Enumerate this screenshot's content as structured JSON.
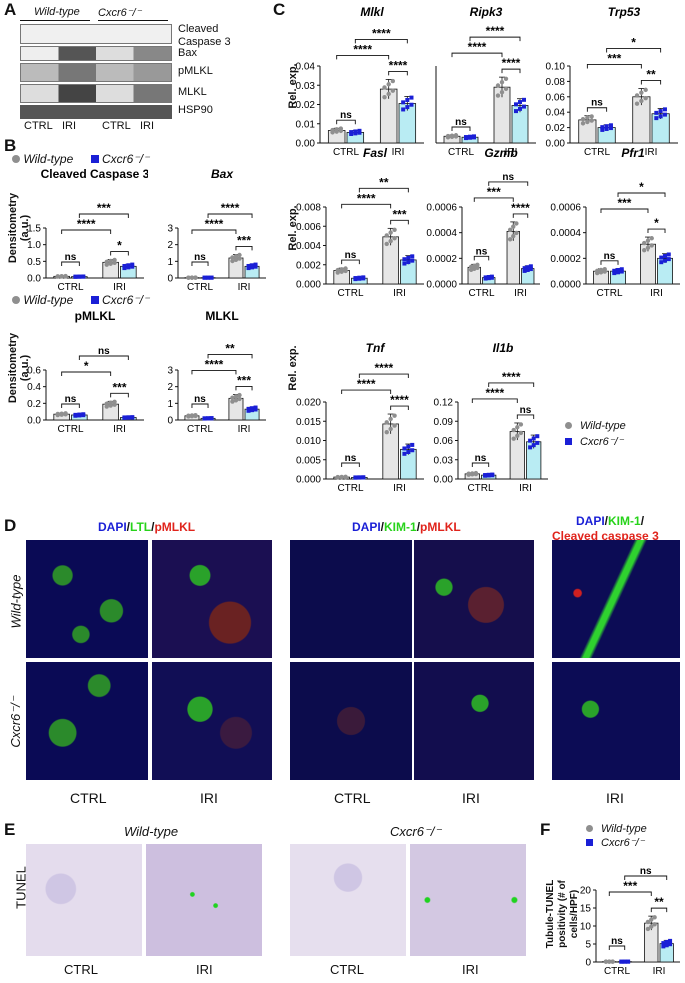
{
  "panel_labels": {
    "A": "A",
    "B": "B",
    "C": "C",
    "D": "D",
    "E": "E",
    "F": "F"
  },
  "colors": {
    "wildtype_bar": "#e6e6e6",
    "cxcr6_bar": "#b9ecf3",
    "wt_dot": "#8f8f8f",
    "cx_dot": "#1a1fd6",
    "blue": "#1a1fd6",
    "green": "#27d31a",
    "red": "#e0241c"
  },
  "western": {
    "groups": [
      "Wild-type",
      "Cxcr6⁻/⁻"
    ],
    "bands": [
      "Cleaved Caspase 3",
      "Bax",
      "pMLKL",
      "MLKL",
      "HSP90"
    ],
    "conditions": [
      "CTRL",
      "IRI",
      "CTRL",
      "IRI"
    ]
  },
  "legend": {
    "wt": "Wild-type",
    "cx": "Cxcr6⁻/⁻"
  },
  "densitometry_ylabel": "Densitometry (a.u.)",
  "rel_exp_ylabel": "Rel. exp.",
  "tunel_ylabel": "Tubule-TUNEL positivity (# of cells/HPF)",
  "x_categories": [
    "CTRL",
    "IRI"
  ],
  "chart_data": [
    {
      "type": "bar",
      "id": "cleaved_caspase3",
      "title": "Cleaved Caspase 3",
      "categories": [
        "CTRL",
        "IRI"
      ],
      "yticks": [
        "0.0",
        "0.5",
        "1.0",
        "1.5"
      ],
      "ylim": [
        0,
        1.5
      ],
      "series": [
        {
          "name": "Wild-type",
          "values": [
            0.05,
            0.47
          ]
        },
        {
          "name": "Cxcr6-/-",
          "values": [
            0.04,
            0.35
          ]
        }
      ],
      "sig": {
        "within_ctrl": "ns",
        "within_iri": "*",
        "ctrl_iri_wt": "****",
        "ctrl_iri_cx": "***"
      }
    },
    {
      "type": "bar",
      "id": "bax",
      "title": "Bax",
      "categories": [
        "CTRL",
        "IRI"
      ],
      "yticks": [
        "0",
        "1",
        "2",
        "3"
      ],
      "ylim": [
        0,
        3
      ],
      "series": [
        {
          "name": "Wild-type",
          "values": [
            0.02,
            1.2
          ]
        },
        {
          "name": "Cxcr6-/-",
          "values": [
            0.02,
            0.7
          ]
        }
      ],
      "sig": {
        "within_ctrl": "ns",
        "within_iri": "***",
        "ctrl_iri_wt": "****",
        "ctrl_iri_cx": "****"
      }
    },
    {
      "type": "bar",
      "id": "pmlkl",
      "title": "pMLKL",
      "categories": [
        "CTRL",
        "IRI"
      ],
      "yticks": [
        "0.0",
        "0.2",
        "0.4",
        "0.6"
      ],
      "ylim": [
        0,
        0.6
      ],
      "series": [
        {
          "name": "Wild-type",
          "values": [
            0.07,
            0.19
          ]
        },
        {
          "name": "Cxcr6-/-",
          "values": [
            0.06,
            0.03
          ]
        }
      ],
      "sig": {
        "within_ctrl": "ns",
        "within_iri": "***",
        "ctrl_iri_wt": "*",
        "ctrl_iri_cx": "ns"
      }
    },
    {
      "type": "bar",
      "id": "mlkl",
      "title": "MLKL",
      "categories": [
        "CTRL",
        "IRI"
      ],
      "yticks": [
        "0",
        "1",
        "2",
        "3"
      ],
      "ylim": [
        0,
        3
      ],
      "series": [
        {
          "name": "Wild-type",
          "values": [
            0.25,
            1.3
          ]
        },
        {
          "name": "Cxcr6-/-",
          "values": [
            0.1,
            0.65
          ]
        }
      ],
      "sig": {
        "within_ctrl": "ns",
        "within_iri": "***",
        "ctrl_iri_wt": "****",
        "ctrl_iri_cx": "**"
      }
    },
    {
      "type": "bar",
      "id": "mlkl_gene",
      "title": "Mlkl",
      "categories": [
        "CTRL",
        "IRI"
      ],
      "yticks": [
        "0.00",
        "0.01",
        "0.02",
        "0.03",
        "0.04"
      ],
      "ylim": [
        0,
        0.04
      ],
      "series": [
        {
          "name": "Wild-type",
          "values": [
            0.0065,
            0.028
          ]
        },
        {
          "name": "Cxcr6-/-",
          "values": [
            0.0055,
            0.0205
          ]
        }
      ],
      "sig": {
        "within_ctrl": "ns",
        "within_iri": "****",
        "ctrl_iri_wt": "****",
        "ctrl_iri_cx": "****"
      }
    },
    {
      "type": "bar",
      "id": "ripk3",
      "title": "Ripk3",
      "categories": [
        "CTRL",
        "IRI"
      ],
      "yticks": [],
      "ylim": [
        0,
        0.04
      ],
      "series": [
        {
          "name": "Wild-type",
          "values": [
            0.0035,
            0.029
          ]
        },
        {
          "name": "Cxcr6-/-",
          "values": [
            0.003,
            0.0195
          ]
        }
      ],
      "sig": {
        "within_ctrl": "ns",
        "within_iri": "****",
        "ctrl_iri_wt": "****",
        "ctrl_iri_cx": "****"
      }
    },
    {
      "type": "bar",
      "id": "trp53",
      "title": "Trp53",
      "categories": [
        "CTRL",
        "IRI"
      ],
      "yticks": [
        "0.00",
        "0.02",
        "0.04",
        "0.06",
        "0.08",
        "0.10"
      ],
      "ylim": [
        0,
        0.1
      ],
      "series": [
        {
          "name": "Wild-type",
          "values": [
            0.03,
            0.06
          ]
        },
        {
          "name": "Cxcr6-/-",
          "values": [
            0.02,
            0.038
          ]
        }
      ],
      "sig": {
        "within_ctrl": "ns",
        "within_iri": "**",
        "ctrl_iri_wt": "***",
        "ctrl_iri_cx": "*"
      }
    },
    {
      "type": "bar",
      "id": "fasl",
      "title": "Fasl",
      "categories": [
        "CTRL",
        "IRI"
      ],
      "yticks": [
        "0.000",
        "0.002",
        "0.004",
        "0.006",
        "0.008"
      ],
      "ylim": [
        0,
        0.008
      ],
      "series": [
        {
          "name": "Wild-type",
          "values": [
            0.0014,
            0.0049
          ]
        },
        {
          "name": "Cxcr6-/-",
          "values": [
            0.0006,
            0.0025
          ]
        }
      ],
      "sig": {
        "within_ctrl": "ns",
        "within_iri": "***",
        "ctrl_iri_wt": "****",
        "ctrl_iri_cx": "**"
      }
    },
    {
      "type": "bar",
      "id": "gzmb",
      "title": "Gzmb",
      "categories": [
        "CTRL",
        "IRI"
      ],
      "yticks": [
        "0.0000",
        "0.0002",
        "0.0004",
        "0.0006"
      ],
      "ylim": [
        0,
        0.0006
      ],
      "series": [
        {
          "name": "Wild-type",
          "values": [
            0.00013,
            0.00041
          ]
        },
        {
          "name": "Cxcr6-/-",
          "values": [
            5e-05,
            0.00012
          ]
        }
      ],
      "sig": {
        "within_ctrl": "ns",
        "within_iri": "****",
        "ctrl_iri_wt": "***",
        "ctrl_iri_cx": "ns"
      }
    },
    {
      "type": "bar",
      "id": "pfr1",
      "title": "Pfr1",
      "categories": [
        "CTRL",
        "IRI"
      ],
      "yticks": [
        "0.0000",
        "0.0002",
        "0.0004",
        "0.0006"
      ],
      "ylim": [
        0,
        0.0006
      ],
      "series": [
        {
          "name": "Wild-type",
          "values": [
            0.0001,
            0.00031
          ]
        },
        {
          "name": "Cxcr6-/-",
          "values": [
            0.0001,
            0.0002
          ]
        }
      ],
      "sig": {
        "within_ctrl": "ns",
        "within_iri": "*",
        "ctrl_iri_wt": "***",
        "ctrl_iri_cx": "*"
      }
    },
    {
      "type": "bar",
      "id": "tnf",
      "title": "Tnf",
      "categories": [
        "CTRL",
        "IRI"
      ],
      "yticks": [
        "0.000",
        "0.005",
        "0.010",
        "0.015",
        "0.020"
      ],
      "ylim": [
        0,
        0.02
      ],
      "series": [
        {
          "name": "Wild-type",
          "values": [
            0.0005,
            0.0143
          ]
        },
        {
          "name": "Cxcr6-/-",
          "values": [
            0.0004,
            0.0077
          ]
        }
      ],
      "sig": {
        "within_ctrl": "ns",
        "within_iri": "****",
        "ctrl_iri_wt": "****",
        "ctrl_iri_cx": "****"
      }
    },
    {
      "type": "bar",
      "id": "il1b",
      "title": "Il1b",
      "categories": [
        "CTRL",
        "IRI"
      ],
      "yticks": [
        "0.00",
        "0.03",
        "0.06",
        "0.09",
        "0.12"
      ],
      "ylim": [
        0,
        0.12
      ],
      "series": [
        {
          "name": "Wild-type",
          "values": [
            0.008,
            0.074
          ]
        },
        {
          "name": "Cxcr6-/-",
          "values": [
            0.006,
            0.058
          ]
        }
      ],
      "sig": {
        "within_ctrl": "ns",
        "within_iri": "ns",
        "ctrl_iri_wt": "****",
        "ctrl_iri_cx": "****"
      }
    },
    {
      "type": "bar",
      "id": "tunel",
      "title": "",
      "categories": [
        "CTRL",
        "IRI"
      ],
      "yticks": [
        "0",
        "5",
        "10",
        "15",
        "20"
      ],
      "ylim": [
        0,
        20
      ],
      "series": [
        {
          "name": "Wild-type",
          "values": [
            0.1,
            10.8
          ]
        },
        {
          "name": "Cxcr6-/-",
          "values": [
            0.1,
            5.1
          ]
        }
      ],
      "sig": {
        "within_ctrl": "ns",
        "within_iri": "**",
        "ctrl_iri_wt": "***",
        "ctrl_iri_cx": "ns"
      }
    }
  ],
  "micrographs": {
    "stain_1": [
      "DAPI",
      "/",
      "LTL",
      "/",
      "pMLKL"
    ],
    "stain_2": [
      "DAPI",
      "/",
      "KIM-1",
      "/",
      "pMLKL"
    ],
    "stain_3_line1": [
      "DAPI",
      "/",
      "KIM-1",
      "/"
    ],
    "stain_3_line2": "Cleaved caspase 3",
    "row_labels": [
      "Wild-type",
      "Cxcr6⁻/⁻"
    ],
    "col_labels": [
      "CTRL",
      "IRI",
      "CTRL",
      "IRI",
      "IRI"
    ]
  },
  "tunel_images": {
    "side_label": "TUNEL",
    "groups": [
      "Wild-type",
      "Cxcr6⁻/⁻"
    ],
    "col_labels": [
      "CTRL",
      "IRI",
      "CTRL",
      "IRI"
    ]
  }
}
